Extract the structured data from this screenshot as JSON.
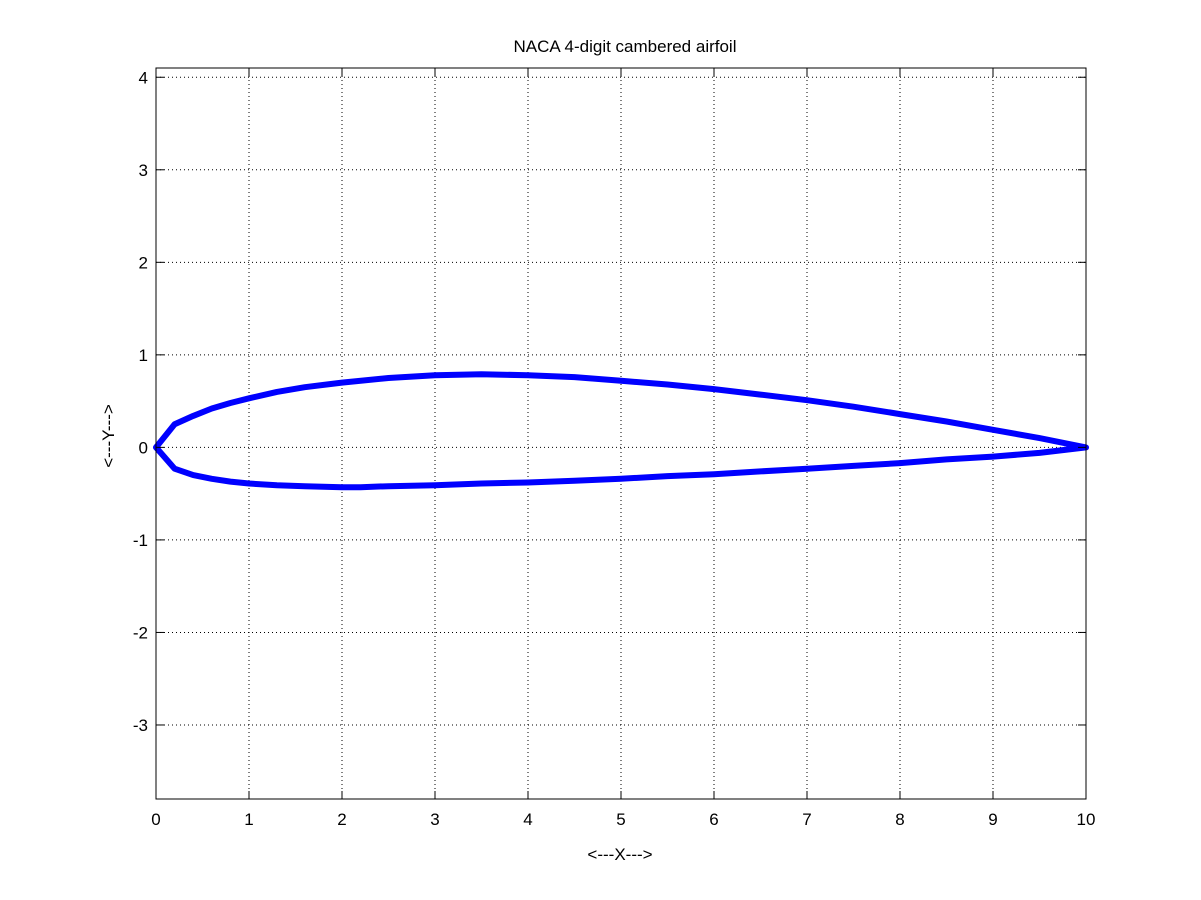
{
  "chart_data": {
    "type": "line",
    "title": "NACA 4-digit cambered airfoil",
    "xlabel": "<---X--->",
    "ylabel": "<---Y--->",
    "xlim": [
      0,
      10
    ],
    "ylim": [
      -3.8,
      4.1
    ],
    "xticks": [
      0,
      1,
      2,
      3,
      4,
      5,
      6,
      7,
      8,
      9,
      10
    ],
    "yticks": [
      -3,
      -2,
      -1,
      0,
      1,
      2,
      3,
      4
    ],
    "grid": true,
    "grid_style": "dotted",
    "series": [
      {
        "color": "#0000ff",
        "x": [
          0,
          0.2,
          0.4,
          0.6,
          0.8,
          1.0,
          1.3,
          1.6,
          2.0,
          2.5,
          3.0,
          3.5,
          4.0,
          4.5,
          5.0,
          5.5,
          6.0,
          6.5,
          7.0,
          7.5,
          8.0,
          8.5,
          9.0,
          9.5,
          10.0,
          9.5,
          9.0,
          8.5,
          8.0,
          7.5,
          7.0,
          6.5,
          6.0,
          5.5,
          5.0,
          4.5,
          4.0,
          3.5,
          3.0,
          2.5,
          2.2,
          2.0,
          1.6,
          1.3,
          1.0,
          0.8,
          0.6,
          0.4,
          0.2,
          0
        ],
        "y": [
          0,
          0.25,
          0.34,
          0.42,
          0.48,
          0.53,
          0.6,
          0.65,
          0.7,
          0.75,
          0.78,
          0.79,
          0.78,
          0.76,
          0.72,
          0.68,
          0.63,
          0.57,
          0.51,
          0.44,
          0.36,
          0.28,
          0.19,
          0.1,
          0,
          -0.06,
          -0.1,
          -0.13,
          -0.17,
          -0.2,
          -0.23,
          -0.26,
          -0.29,
          -0.31,
          -0.34,
          -0.36,
          -0.38,
          -0.39,
          -0.41,
          -0.42,
          -0.43,
          -0.43,
          -0.42,
          -0.41,
          -0.39,
          -0.37,
          -0.34,
          -0.3,
          -0.23,
          0
        ]
      }
    ]
  }
}
